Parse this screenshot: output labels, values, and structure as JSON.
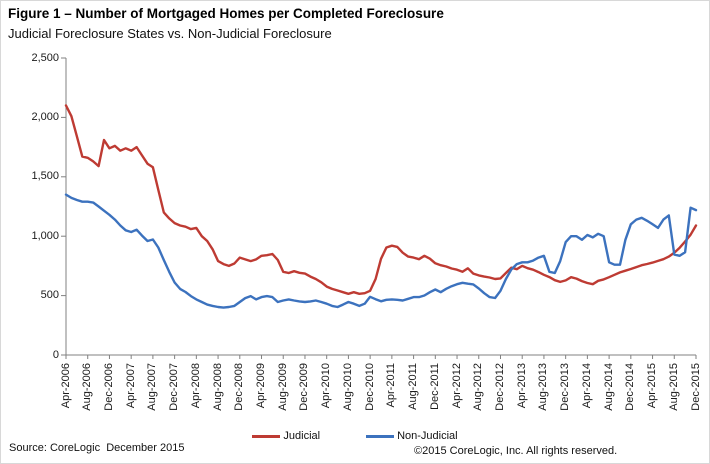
{
  "figure": {
    "title": "Figure 1 – Number of Mortgaged Homes per Completed Foreclosure",
    "subtitle": "Judicial Foreclosure States vs. Non-Judicial Foreclosure",
    "source_note": "Source: CoreLogic  December 2015",
    "copyright_note": "©2015 CoreLogic, Inc. All rights reserved."
  },
  "chart_data": {
    "type": "line",
    "title": "Figure 1 – Number of Mortgaged Homes per Completed Foreclosure",
    "subtitle": "Judicial Foreclosure States vs. Non-Judicial Foreclosure",
    "frequency": "monthly",
    "x_start": "Apr-2006",
    "x_end": "Dec-2015",
    "x_tick_step_months": 4,
    "grid": false,
    "legend_position": "bottom",
    "y_axis": {
      "min": 0,
      "max": 2500,
      "tick_interval": 500,
      "tick_labels": [
        "0",
        "500",
        "1,000",
        "1,500",
        "2,000",
        "2,500"
      ]
    },
    "x": [
      "Apr-2006",
      "May-2006",
      "Jun-2006",
      "Jul-2006",
      "Aug-2006",
      "Sep-2006",
      "Oct-2006",
      "Nov-2006",
      "Dec-2006",
      "Jan-2007",
      "Feb-2007",
      "Mar-2007",
      "Apr-2007",
      "May-2007",
      "Jun-2007",
      "Jul-2007",
      "Aug-2007",
      "Sep-2007",
      "Oct-2007",
      "Nov-2007",
      "Dec-2007",
      "Jan-2008",
      "Feb-2008",
      "Mar-2008",
      "Apr-2008",
      "May-2008",
      "Jun-2008",
      "Jul-2008",
      "Aug-2008",
      "Sep-2008",
      "Oct-2008",
      "Nov-2008",
      "Dec-2008",
      "Jan-2009",
      "Feb-2009",
      "Mar-2009",
      "Apr-2009",
      "May-2009",
      "Jun-2009",
      "Jul-2009",
      "Aug-2009",
      "Sep-2009",
      "Oct-2009",
      "Nov-2009",
      "Dec-2009",
      "Jan-2010",
      "Feb-2010",
      "Mar-2010",
      "Apr-2010",
      "May-2010",
      "Jun-2010",
      "Jul-2010",
      "Aug-2010",
      "Sep-2010",
      "Oct-2010",
      "Nov-2010",
      "Dec-2010",
      "Jan-2011",
      "Feb-2011",
      "Mar-2011",
      "Apr-2011",
      "May-2011",
      "Jun-2011",
      "Jul-2011",
      "Aug-2011",
      "Sep-2011",
      "Oct-2011",
      "Nov-2011",
      "Dec-2011",
      "Jan-2012",
      "Feb-2012",
      "Mar-2012",
      "Apr-2012",
      "May-2012",
      "Jun-2012",
      "Jul-2012",
      "Aug-2012",
      "Sep-2012",
      "Oct-2012",
      "Nov-2012",
      "Dec-2012",
      "Jan-2013",
      "Feb-2013",
      "Mar-2013",
      "Apr-2013",
      "May-2013",
      "Jun-2013",
      "Jul-2013",
      "Aug-2013",
      "Sep-2013",
      "Oct-2013",
      "Nov-2013",
      "Dec-2013",
      "Jan-2014",
      "Feb-2014",
      "Mar-2014",
      "Apr-2014",
      "May-2014",
      "Jun-2014",
      "Jul-2014",
      "Aug-2014",
      "Sep-2014",
      "Oct-2014",
      "Nov-2014",
      "Dec-2014",
      "Jan-2015",
      "Feb-2015",
      "Mar-2015",
      "Apr-2015",
      "May-2015",
      "Jun-2015",
      "Jul-2015",
      "Aug-2015",
      "Sep-2015",
      "Oct-2015",
      "Nov-2015",
      "Dec-2015"
    ],
    "series": [
      {
        "name": "Judicial",
        "color": "#BE3B33",
        "values": [
          2100,
          2010,
          1840,
          1670,
          1660,
          1630,
          1590,
          1810,
          1740,
          1760,
          1720,
          1740,
          1720,
          1750,
          1680,
          1610,
          1580,
          1390,
          1200,
          1150,
          1110,
          1090,
          1080,
          1060,
          1070,
          1000,
          960,
          890,
          790,
          765,
          750,
          770,
          820,
          805,
          790,
          805,
          835,
          840,
          850,
          800,
          700,
          690,
          705,
          692,
          685,
          660,
          640,
          612,
          576,
          556,
          543,
          529,
          515,
          529,
          515,
          520,
          540,
          640,
          810,
          905,
          920,
          910,
          861,
          828,
          820,
          806,
          835,
          811,
          772,
          756,
          745,
          728,
          718,
          700,
          730,
          685,
          670,
          660,
          652,
          640,
          645,
          690,
          735,
          722,
          750,
          731,
          718,
          698,
          675,
          656,
          630,
          615,
          628,
          655,
          643,
          622,
          606,
          596,
          625,
          636,
          655,
          675,
          695,
          710,
          724,
          740,
          756,
          766,
          778,
          792,
          806,
          828,
          861,
          903,
          955,
          1013,
          1090
        ]
      },
      {
        "name": "Non-Judicial",
        "color": "#3C72BE",
        "values": [
          1350,
          1322,
          1305,
          1290,
          1290,
          1284,
          1250,
          1215,
          1180,
          1140,
          1090,
          1050,
          1035,
          1055,
          1005,
          960,
          972,
          905,
          800,
          700,
          610,
          556,
          530,
          496,
          468,
          446,
          424,
          413,
          404,
          399,
          404,
          413,
          446,
          479,
          496,
          468,
          487,
          496,
          487,
          446,
          459,
          468,
          459,
          451,
          446,
          451,
          459,
          446,
          432,
          413,
          404,
          424,
          446,
          432,
          413,
          432,
          490,
          470,
          452,
          465,
          468,
          465,
          459,
          473,
          487,
          487,
          501,
          529,
          551,
          529,
          557,
          579,
          596,
          608,
          600,
          594,
          560,
          520,
          487,
          480,
          540,
          640,
          720,
          765,
          780,
          780,
          795,
          820,
          835,
          700,
          690,
          790,
          950,
          1000,
          1000,
          970,
          1010,
          990,
          1020,
          1000,
          780,
          760,
          760,
          970,
          1100,
          1140,
          1155,
          1130,
          1100,
          1070,
          1140,
          1175,
          845,
          835,
          865,
          1240,
          1220
        ]
      }
    ]
  }
}
